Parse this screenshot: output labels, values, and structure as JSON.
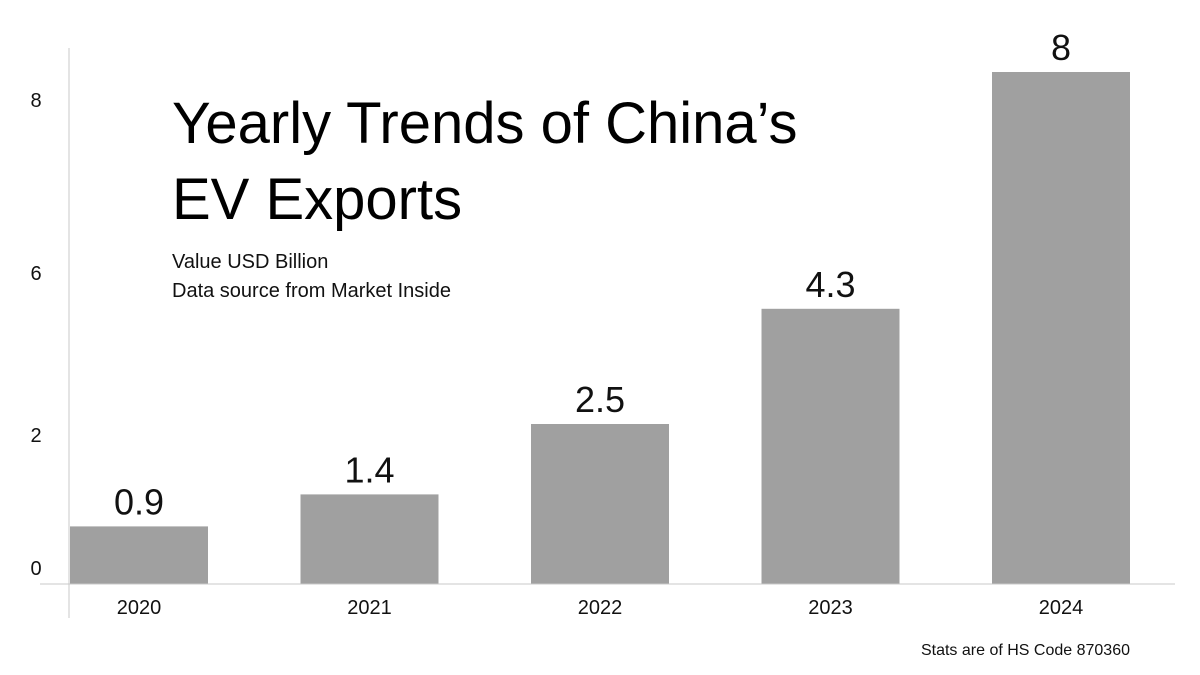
{
  "chart_data": {
    "type": "bar",
    "title_lines": [
      "Yearly Trends of China’s",
      "EV Exports"
    ],
    "subtitle": "Value USD Billion",
    "source": "Data source from Market Inside",
    "footnote": "Stats are of HS Code 870360",
    "categories": [
      "2020",
      "2021",
      "2022",
      "2023",
      "2024"
    ],
    "values": [
      0.9,
      1.4,
      2.5,
      4.3,
      8
    ],
    "data_labels": [
      "0.9",
      "1.4",
      "2.5",
      "4.3",
      "8"
    ],
    "y_tick_labels": [
      "0",
      "2",
      "6",
      "8"
    ],
    "bar_color": "#a0a0a0",
    "grid": false,
    "xlabel": "",
    "ylabel": ""
  }
}
